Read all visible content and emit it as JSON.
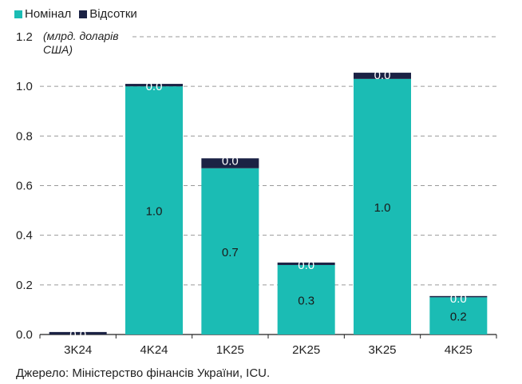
{
  "chart_data": {
    "type": "bar",
    "stacked": true,
    "categories": [
      "3K24",
      "4K24",
      "1K25",
      "2K25",
      "3K25",
      "4K25"
    ],
    "series": [
      {
        "name": "Номінал",
        "color": "#1BBCB4",
        "values": [
          0.0,
          1.0,
          0.67,
          0.28,
          1.03,
          0.15
        ],
        "labels": [
          "",
          "1.0",
          "0.7",
          "0.3",
          "1.0",
          "0.2"
        ]
      },
      {
        "name": "Відсотки",
        "color": "#1B2244",
        "values": [
          0.01,
          0.01,
          0.04,
          0.01,
          0.025,
          0.005
        ],
        "labels": [
          "0.0",
          "0.0",
          "0.0",
          "0.0",
          "0.0",
          "0.0"
        ]
      }
    ],
    "ylim": [
      0,
      1.2
    ],
    "yticks": [
      "0.0",
      "0.2",
      "0.4",
      "0.6",
      "0.8",
      "1.0",
      "1.2"
    ],
    "unit_label": "(млрд. доларів США)",
    "grid": true,
    "legend_position": "top-left"
  },
  "source": "Джерело: Міністерство фінансів України, ICU."
}
